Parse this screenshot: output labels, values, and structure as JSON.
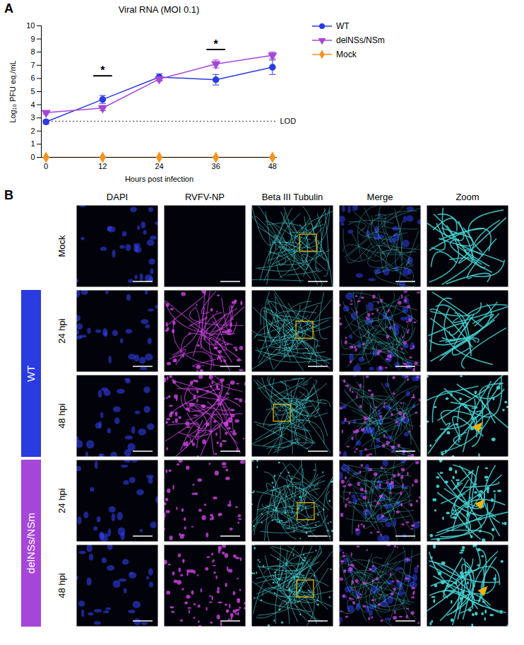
{
  "chart_data": {
    "type": "line",
    "panel": "A",
    "title": "Viral RNA (MOI 0.1)",
    "x": [
      0,
      12,
      24,
      36,
      48
    ],
    "series": [
      {
        "name": "WT",
        "color": "#2a3be0",
        "marker": "circle",
        "values": [
          2.7,
          4.4,
          6.1,
          5.9,
          6.85
        ],
        "errors": [
          0.15,
          0.3,
          0.25,
          0.4,
          0.55
        ]
      },
      {
        "name": "delNSs/NSm",
        "color": "#a646d8",
        "marker": "triangle-down",
        "values": [
          3.4,
          3.75,
          5.95,
          7.1,
          7.75
        ],
        "errors": [
          0.1,
          0.2,
          0.15,
          0.3,
          0.25
        ]
      },
      {
        "name": "Mock",
        "color": "#f7931e",
        "marker": "diamond",
        "values": [
          0,
          0,
          0,
          0,
          0
        ],
        "errors": [
          0,
          0,
          0,
          0,
          0
        ]
      }
    ],
    "xlabel": "Hours post infection",
    "ylabel": "Log₁₀ PFU eq./mL",
    "xlim": [
      -1,
      49
    ],
    "xticks": [
      0,
      12,
      24,
      36,
      48
    ],
    "ylim": [
      0,
      10
    ],
    "yticks": [
      0,
      1,
      2,
      3,
      4,
      5,
      6,
      7,
      8,
      9,
      10
    ],
    "reference_lines": [
      {
        "y": 2.75,
        "label": "LOD",
        "line_style": "dotted"
      }
    ],
    "annotations": [
      {
        "x": 12,
        "y": 6.2,
        "text": "*"
      },
      {
        "x": 36,
        "y": 8.2,
        "text": "*"
      }
    ],
    "legend": "right",
    "grid": false
  },
  "image_grid": {
    "panel": "B",
    "columns": [
      "DAPI",
      "RVFV-NP",
      "Beta III Tubulin",
      "Merge",
      "Zoom"
    ],
    "groups": [
      {
        "name": "WT",
        "color": "#2a3be0"
      },
      {
        "name": "delNSs/NSm",
        "color": "#a646d8"
      }
    ],
    "rows": [
      {
        "label": "Mock"
      },
      {
        "label": "24 hpi",
        "group": "WT"
      },
      {
        "label": "48 hpi",
        "group": "WT"
      },
      {
        "label": "24 hpi",
        "group": "delNSs/NSm"
      },
      {
        "label": "48 hpi",
        "group": "delNSs/NSm"
      }
    ]
  }
}
